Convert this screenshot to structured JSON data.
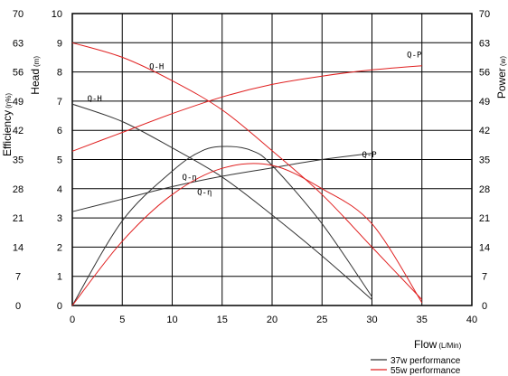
{
  "chart_data": {
    "type": "line",
    "x_axis": {
      "label": "Flow",
      "unit": "(L/Min)",
      "min": 0,
      "max": 40,
      "ticks": [
        0,
        5,
        10,
        15,
        20,
        25,
        30,
        35,
        40
      ]
    },
    "y_left_efficiency": {
      "label": "Efficiency",
      "unit": "(η%)",
      "min": 0,
      "max": 70,
      "ticks": [
        0,
        7,
        14,
        21,
        28,
        35,
        42,
        49,
        56,
        63,
        70
      ]
    },
    "y_left_head": {
      "label": "Head",
      "unit": "(m)",
      "min": 0,
      "max": 10,
      "ticks": [
        0,
        1,
        2,
        3,
        4,
        5,
        6,
        7,
        8,
        9,
        10
      ]
    },
    "y_right_power": {
      "label": "Power",
      "unit": "(w)",
      "min": 0,
      "max": 70,
      "ticks": [
        0,
        7,
        14,
        21,
        28,
        35,
        42,
        49,
        56,
        63,
        70
      ]
    },
    "grid": true,
    "legend_position": "bottom-right",
    "series": [
      {
        "name": "37w performance",
        "color": "#333333",
        "curve": "Q-H",
        "label": "Q-H",
        "label_at": [
          1.5,
          7.0
        ],
        "axis": "head",
        "x": [
          0,
          5,
          10,
          15,
          20,
          25,
          30
        ],
        "y": [
          6.9,
          6.3,
          5.4,
          4.4,
          3.1,
          1.7,
          0.2
        ]
      },
      {
        "name": "37w performance",
        "color": "#333333",
        "curve": "Q-P",
        "label": "Q-P",
        "label_at": [
          29,
          35.5
        ],
        "axis": "power",
        "x": [
          0,
          5,
          10,
          15,
          20,
          25,
          30
        ],
        "y": [
          22.5,
          25.5,
          28.5,
          31,
          33,
          35,
          36.5
        ]
      },
      {
        "name": "37w performance",
        "color": "#333333",
        "curve": "Q-η",
        "label": "Q-η",
        "label_at": [
          12.5,
          3.8
        ],
        "axis": "head",
        "x": [
          0,
          5,
          10,
          13,
          15.5,
          18,
          20,
          25,
          30
        ],
        "y": [
          0,
          2.9,
          4.6,
          5.3,
          5.45,
          5.3,
          4.8,
          2.8,
          0.3
        ]
      },
      {
        "name": "55w performance",
        "color": "#e02020",
        "curve": "Q-H",
        "label": "Q-H",
        "label_at": [
          7.7,
          8.1
        ],
        "axis": "head",
        "x": [
          0,
          5,
          10,
          15,
          20,
          25,
          30,
          35
        ],
        "y": [
          9.0,
          8.5,
          7.7,
          6.7,
          5.3,
          3.8,
          2.0,
          0.2
        ]
      },
      {
        "name": "55w performance",
        "color": "#e02020",
        "curve": "Q-P",
        "label": "Q-P",
        "label_at": [
          33.5,
          59.5
        ],
        "axis": "power",
        "x": [
          0,
          5,
          10,
          15,
          20,
          25,
          30,
          35
        ],
        "y": [
          37,
          41.5,
          46,
          50,
          53,
          55,
          56.5,
          57.5
        ]
      },
      {
        "name": "55w performance",
        "color": "#e02020",
        "curve": "Q-η",
        "label": "Q-η",
        "label_at": [
          11,
          4.3
        ],
        "axis": "head",
        "x": [
          0,
          5,
          10,
          15,
          20,
          25,
          30,
          35
        ],
        "y": [
          0,
          2.2,
          3.8,
          4.7,
          4.8,
          4.0,
          2.8,
          0.1
        ]
      }
    ],
    "legend": [
      {
        "label": "37w performance",
        "color": "#333333"
      },
      {
        "label": "55w performance",
        "color": "#e02020"
      }
    ]
  }
}
